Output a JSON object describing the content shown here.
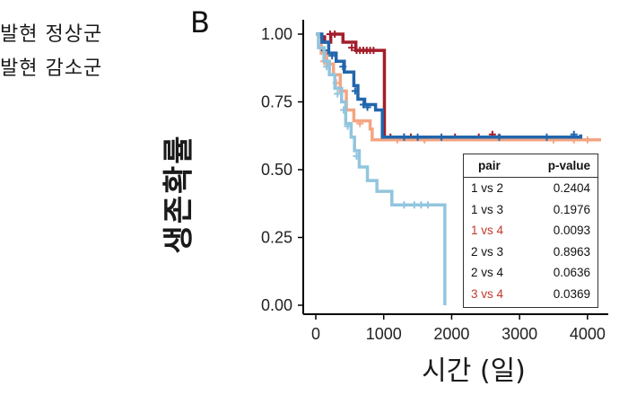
{
  "legend_fragments": [
    "발현 정상군",
    "발현 감소군"
  ],
  "panel_label": "B",
  "chart_data": {
    "type": "line",
    "subtype": "kaplan-meier",
    "xlabel": "시간 (일)",
    "ylabel": "생존확률",
    "xlim": [
      0,
      4200
    ],
    "ylim": [
      0,
      1
    ],
    "x_ticks": [
      0,
      1000,
      2000,
      3000,
      4000
    ],
    "y_ticks": [
      0.0,
      0.25,
      0.5,
      0.75,
      1.0
    ],
    "y_tick_labels": [
      "0.00",
      "0.25",
      "0.50",
      "0.75",
      "1.00"
    ],
    "grid": false,
    "series": [
      {
        "color": "#a31d2a",
        "points": [
          [
            0,
            1.0
          ],
          [
            60,
            0.99
          ],
          [
            130,
            0.97
          ],
          [
            220,
            1.0
          ],
          [
            400,
            0.97
          ],
          [
            590,
            0.94
          ],
          [
            1000,
            0.94
          ],
          [
            1010,
            0.62
          ],
          [
            1600,
            0.62
          ],
          [
            2700,
            0.63
          ]
        ],
        "censors": [
          [
            210,
            1.0
          ],
          [
            280,
            1.0
          ],
          [
            530,
            0.95
          ],
          [
            600,
            0.94
          ],
          [
            650,
            0.94
          ],
          [
            700,
            0.94
          ],
          [
            750,
            0.94
          ],
          [
            800,
            0.94
          ],
          [
            850,
            0.94
          ],
          [
            1100,
            0.62
          ],
          [
            1300,
            0.62
          ],
          [
            1400,
            0.62
          ],
          [
            2050,
            0.62
          ],
          [
            2400,
            0.62
          ],
          [
            2600,
            0.63
          ]
        ]
      },
      {
        "color": "#f4a582",
        "points": [
          [
            0,
            1.0
          ],
          [
            40,
            0.96
          ],
          [
            80,
            0.93
          ],
          [
            160,
            0.89
          ],
          [
            260,
            0.85
          ],
          [
            360,
            0.79
          ],
          [
            450,
            0.72
          ],
          [
            560,
            0.68
          ],
          [
            800,
            0.65
          ],
          [
            830,
            0.61
          ],
          [
            1600,
            0.61
          ],
          [
            4200,
            0.61
          ]
        ],
        "censors": [
          [
            120,
            0.9
          ],
          [
            300,
            0.82
          ],
          [
            650,
            0.67
          ],
          [
            1200,
            0.61
          ],
          [
            1600,
            0.61
          ],
          [
            3500,
            0.61
          ],
          [
            3800,
            0.61
          ],
          [
            4000,
            0.61
          ]
        ]
      },
      {
        "color": "#2166ac",
        "points": [
          [
            0,
            1.0
          ],
          [
            90,
            0.97
          ],
          [
            190,
            0.93
          ],
          [
            300,
            0.9
          ],
          [
            420,
            0.86
          ],
          [
            560,
            0.81
          ],
          [
            620,
            0.76
          ],
          [
            720,
            0.74
          ],
          [
            880,
            0.72
          ],
          [
            960,
            0.72
          ],
          [
            980,
            0.62
          ],
          [
            3500,
            0.62
          ],
          [
            3900,
            0.63
          ]
        ],
        "censors": [
          [
            130,
            0.94
          ],
          [
            240,
            0.92
          ],
          [
            400,
            0.88
          ],
          [
            580,
            0.79
          ],
          [
            700,
            0.74
          ],
          [
            760,
            0.73
          ],
          [
            1300,
            0.62
          ],
          [
            1500,
            0.62
          ],
          [
            1850,
            0.62
          ],
          [
            2700,
            0.62
          ],
          [
            3400,
            0.62
          ],
          [
            3800,
            0.63
          ]
        ]
      },
      {
        "color": "#92c5de",
        "points": [
          [
            0,
            1.0
          ],
          [
            40,
            0.95
          ],
          [
            120,
            0.9
          ],
          [
            200,
            0.85
          ],
          [
            280,
            0.8
          ],
          [
            380,
            0.75
          ],
          [
            440,
            0.67
          ],
          [
            520,
            0.62
          ],
          [
            570,
            0.57
          ],
          [
            640,
            0.51
          ],
          [
            760,
            0.46
          ],
          [
            900,
            0.42
          ],
          [
            1120,
            0.37
          ],
          [
            1850,
            0.37
          ],
          [
            1900,
            0.0
          ]
        ],
        "censors": [
          [
            160,
            0.88
          ],
          [
            320,
            0.78
          ],
          [
            410,
            0.72
          ],
          [
            470,
            0.66
          ],
          [
            600,
            0.55
          ],
          [
            1300,
            0.37
          ],
          [
            1450,
            0.37
          ],
          [
            1550,
            0.37
          ],
          [
            1650,
            0.37
          ]
        ]
      }
    ],
    "pvalue_table": {
      "headers": [
        "pair",
        "p-value"
      ],
      "rows": [
        {
          "pair": "1 vs 2",
          "p": "0.2404",
          "color": "#111111"
        },
        {
          "pair": "1 vs 3",
          "p": "0.1976",
          "color": "#111111"
        },
        {
          "pair": "1 vs 4",
          "p": "0.0093",
          "color": "#c0392b"
        },
        {
          "pair": "2 vs 3",
          "p": "0.8963",
          "color": "#111111"
        },
        {
          "pair": "2 vs 4",
          "p": "0.0636",
          "color": "#111111"
        },
        {
          "pair": "3 vs 4",
          "p": "0.0369",
          "color": "#c0392b"
        }
      ]
    }
  }
}
